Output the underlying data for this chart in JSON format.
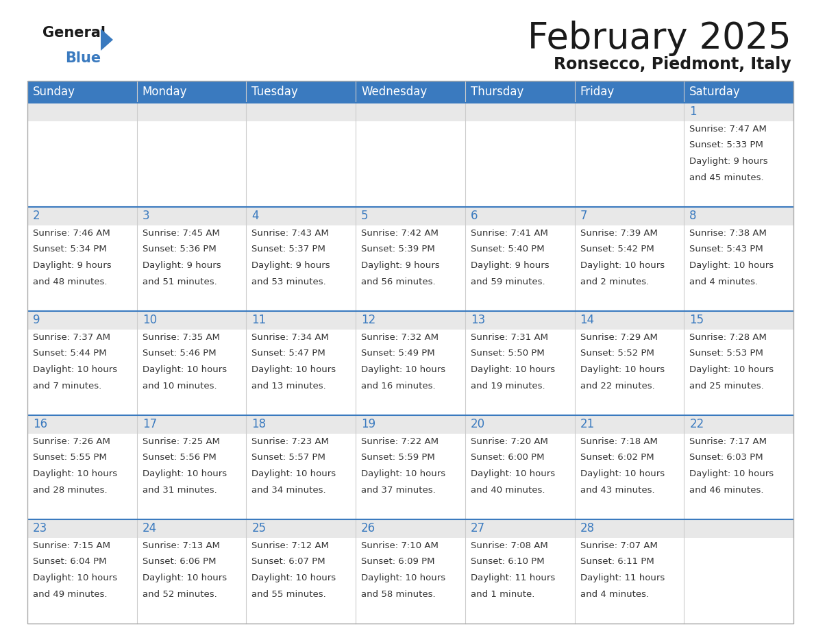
{
  "title": "February 2025",
  "subtitle": "Ronsecco, Piedmont, Italy",
  "header_color": "#3a7abf",
  "header_text_color": "#ffffff",
  "cell_top_bg": "#e8e8e8",
  "cell_main_bg": "#ffffff",
  "day_number_color": "#3a7abf",
  "text_color": "#333333",
  "separator_color": "#3a7abf",
  "grid_color": "#cccccc",
  "days_of_week": [
    "Sunday",
    "Monday",
    "Tuesday",
    "Wednesday",
    "Thursday",
    "Friday",
    "Saturday"
  ],
  "calendar_data": [
    [
      null,
      null,
      null,
      null,
      null,
      null,
      {
        "day": 1,
        "sunrise": "7:47 AM",
        "sunset": "5:33 PM",
        "daylight": "9 hours",
        "daylight2": "and 45 minutes."
      }
    ],
    [
      {
        "day": 2,
        "sunrise": "7:46 AM",
        "sunset": "5:34 PM",
        "daylight": "9 hours",
        "daylight2": "and 48 minutes."
      },
      {
        "day": 3,
        "sunrise": "7:45 AM",
        "sunset": "5:36 PM",
        "daylight": "9 hours",
        "daylight2": "and 51 minutes."
      },
      {
        "day": 4,
        "sunrise": "7:43 AM",
        "sunset": "5:37 PM",
        "daylight": "9 hours",
        "daylight2": "and 53 minutes."
      },
      {
        "day": 5,
        "sunrise": "7:42 AM",
        "sunset": "5:39 PM",
        "daylight": "9 hours",
        "daylight2": "and 56 minutes."
      },
      {
        "day": 6,
        "sunrise": "7:41 AM",
        "sunset": "5:40 PM",
        "daylight": "9 hours",
        "daylight2": "and 59 minutes."
      },
      {
        "day": 7,
        "sunrise": "7:39 AM",
        "sunset": "5:42 PM",
        "daylight": "10 hours",
        "daylight2": "and 2 minutes."
      },
      {
        "day": 8,
        "sunrise": "7:38 AM",
        "sunset": "5:43 PM",
        "daylight": "10 hours",
        "daylight2": "and 4 minutes."
      }
    ],
    [
      {
        "day": 9,
        "sunrise": "7:37 AM",
        "sunset": "5:44 PM",
        "daylight": "10 hours",
        "daylight2": "and 7 minutes."
      },
      {
        "day": 10,
        "sunrise": "7:35 AM",
        "sunset": "5:46 PM",
        "daylight": "10 hours",
        "daylight2": "and 10 minutes."
      },
      {
        "day": 11,
        "sunrise": "7:34 AM",
        "sunset": "5:47 PM",
        "daylight": "10 hours",
        "daylight2": "and 13 minutes."
      },
      {
        "day": 12,
        "sunrise": "7:32 AM",
        "sunset": "5:49 PM",
        "daylight": "10 hours",
        "daylight2": "and 16 minutes."
      },
      {
        "day": 13,
        "sunrise": "7:31 AM",
        "sunset": "5:50 PM",
        "daylight": "10 hours",
        "daylight2": "and 19 minutes."
      },
      {
        "day": 14,
        "sunrise": "7:29 AM",
        "sunset": "5:52 PM",
        "daylight": "10 hours",
        "daylight2": "and 22 minutes."
      },
      {
        "day": 15,
        "sunrise": "7:28 AM",
        "sunset": "5:53 PM",
        "daylight": "10 hours",
        "daylight2": "and 25 minutes."
      }
    ],
    [
      {
        "day": 16,
        "sunrise": "7:26 AM",
        "sunset": "5:55 PM",
        "daylight": "10 hours",
        "daylight2": "and 28 minutes."
      },
      {
        "day": 17,
        "sunrise": "7:25 AM",
        "sunset": "5:56 PM",
        "daylight": "10 hours",
        "daylight2": "and 31 minutes."
      },
      {
        "day": 18,
        "sunrise": "7:23 AM",
        "sunset": "5:57 PM",
        "daylight": "10 hours",
        "daylight2": "and 34 minutes."
      },
      {
        "day": 19,
        "sunrise": "7:22 AM",
        "sunset": "5:59 PM",
        "daylight": "10 hours",
        "daylight2": "and 37 minutes."
      },
      {
        "day": 20,
        "sunrise": "7:20 AM",
        "sunset": "6:00 PM",
        "daylight": "10 hours",
        "daylight2": "and 40 minutes."
      },
      {
        "day": 21,
        "sunrise": "7:18 AM",
        "sunset": "6:02 PM",
        "daylight": "10 hours",
        "daylight2": "and 43 minutes."
      },
      {
        "day": 22,
        "sunrise": "7:17 AM",
        "sunset": "6:03 PM",
        "daylight": "10 hours",
        "daylight2": "and 46 minutes."
      }
    ],
    [
      {
        "day": 23,
        "sunrise": "7:15 AM",
        "sunset": "6:04 PM",
        "daylight": "10 hours",
        "daylight2": "and 49 minutes."
      },
      {
        "day": 24,
        "sunrise": "7:13 AM",
        "sunset": "6:06 PM",
        "daylight": "10 hours",
        "daylight2": "and 52 minutes."
      },
      {
        "day": 25,
        "sunrise": "7:12 AM",
        "sunset": "6:07 PM",
        "daylight": "10 hours",
        "daylight2": "and 55 minutes."
      },
      {
        "day": 26,
        "sunrise": "7:10 AM",
        "sunset": "6:09 PM",
        "daylight": "10 hours",
        "daylight2": "and 58 minutes."
      },
      {
        "day": 27,
        "sunrise": "7:08 AM",
        "sunset": "6:10 PM",
        "daylight": "11 hours",
        "daylight2": "and 1 minute."
      },
      {
        "day": 28,
        "sunrise": "7:07 AM",
        "sunset": "6:11 PM",
        "daylight": "11 hours",
        "daylight2": "and 4 minutes."
      },
      null
    ]
  ]
}
